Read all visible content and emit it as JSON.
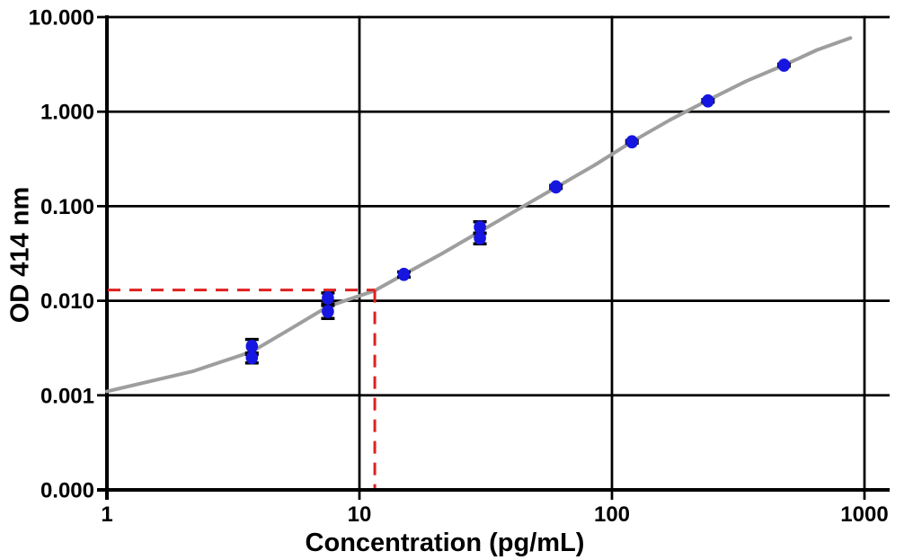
{
  "chart_data": {
    "type": "scatter",
    "title": "",
    "xlabel": "Concentration (pg/mL)",
    "ylabel": "OD 414 nm",
    "x_scale": "log",
    "y_scale": "log",
    "xlim": [
      1,
      1000
    ],
    "ylim": [
      0.0001,
      10
    ],
    "grid": true,
    "legend_position": "none",
    "x_ticks": [
      {
        "value": 1,
        "label": "1"
      },
      {
        "value": 10,
        "label": "10"
      },
      {
        "value": 100,
        "label": "100"
      },
      {
        "value": 1000,
        "label": "1000"
      }
    ],
    "y_ticks": [
      {
        "value": 10,
        "label": "10.000"
      },
      {
        "value": 1,
        "label": "1.000"
      },
      {
        "value": 0.1,
        "label": "0.100"
      },
      {
        "value": 0.01,
        "label": "0.010"
      },
      {
        "value": 0.001,
        "label": "0.001"
      },
      {
        "value": 0.0001,
        "label": "0.000"
      }
    ],
    "series": [
      {
        "name": "standards",
        "type": "scatter",
        "marker": "circle",
        "marker_color": "#1616e0",
        "error_bar_color": "#000000",
        "points": [
          {
            "conc": 3.75,
            "od": 0.0033,
            "err": 0.0006
          },
          {
            "conc": 3.75,
            "od": 0.0025,
            "err": 0.0003
          },
          {
            "conc": 7.5,
            "od": 0.0107,
            "err": 0.0014
          },
          {
            "conc": 7.5,
            "od": 0.0077,
            "err": 0.0012
          },
          {
            "conc": 15,
            "od": 0.019,
            "err": 0.0012
          },
          {
            "conc": 30,
            "od": 0.06,
            "err": 0.0085
          },
          {
            "conc": 30,
            "od": 0.046,
            "err": 0.006
          },
          {
            "conc": 60,
            "od": 0.16,
            "err": 0.006
          },
          {
            "conc": 120,
            "od": 0.48,
            "err": 0.015
          },
          {
            "conc": 240,
            "od": 1.3,
            "err": 0.04
          },
          {
            "conc": 480,
            "od": 3.1,
            "err": 0.08
          }
        ]
      },
      {
        "name": "4pl-fit-curve",
        "type": "line",
        "color": "#9e9e9e",
        "points": [
          [
            1,
            0.0011
          ],
          [
            2.2,
            0.0018
          ],
          [
            3.75,
            0.0029
          ],
          [
            5.3,
            0.005
          ],
          [
            7.5,
            0.0087
          ],
          [
            11.5,
            0.0128
          ],
          [
            15,
            0.019
          ],
          [
            21,
            0.031
          ],
          [
            30,
            0.054
          ],
          [
            42,
            0.091
          ],
          [
            60,
            0.158
          ],
          [
            85,
            0.27
          ],
          [
            120,
            0.48
          ],
          [
            170,
            0.82
          ],
          [
            240,
            1.32
          ],
          [
            340,
            2.1
          ],
          [
            480,
            3.1
          ],
          [
            650,
            4.5
          ],
          [
            880,
            6.0
          ]
        ]
      }
    ],
    "annotations": [
      {
        "name": "detection-limit-marker",
        "style": "dashed",
        "color": "#e02020",
        "od": 0.013,
        "conc": 11.5
      }
    ]
  }
}
